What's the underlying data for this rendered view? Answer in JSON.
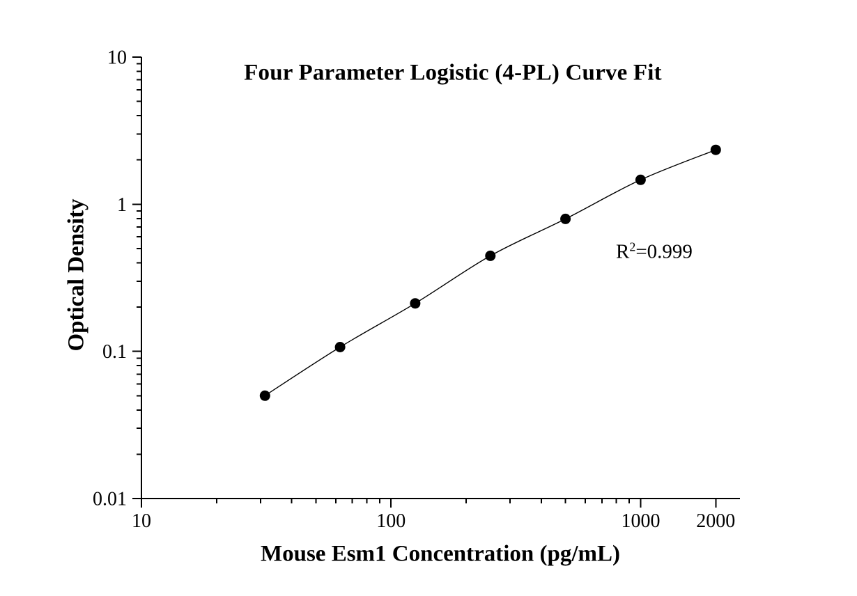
{
  "figure": {
    "background": "#ffffff"
  },
  "chart_data": {
    "type": "line",
    "title": "Four Parameter Logistic (4-PL) Curve Fit",
    "xlabel": "Mouse Esm1 Concentration (pg/mL)",
    "ylabel": "Optical Density",
    "x_scale": "log",
    "y_scale": "log",
    "xlim": [
      10,
      2500
    ],
    "ylim": [
      0.01,
      10
    ],
    "grid": false,
    "legend": false,
    "axis_color": "#000000",
    "text_color": "#000000",
    "x_ticks": [
      {
        "value": 10,
        "label": "10"
      },
      {
        "value": 100,
        "label": "100"
      },
      {
        "value": 1000,
        "label": "1000"
      },
      {
        "value": 2000,
        "label": "2000"
      }
    ],
    "y_ticks": [
      {
        "value": 10,
        "label": "10"
      },
      {
        "value": 1,
        "label": "1"
      },
      {
        "value": 0.1,
        "label": "0.1"
      },
      {
        "value": 0.01,
        "label": "0.01"
      }
    ],
    "series": [
      {
        "name": "standard-curve",
        "marker": "circle",
        "marker_color": "#000000",
        "line_color": "#000000",
        "points": [
          {
            "x": 31.25,
            "y": 0.05
          },
          {
            "x": 62.5,
            "y": 0.107
          },
          {
            "x": 125,
            "y": 0.212
          },
          {
            "x": 250,
            "y": 0.446
          },
          {
            "x": 500,
            "y": 0.795
          },
          {
            "x": 1000,
            "y": 1.465
          },
          {
            "x": 2000,
            "y": 2.343
          }
        ]
      }
    ],
    "annotation": {
      "prefix": "R",
      "superscript": "2",
      "suffix": "=0.999"
    }
  }
}
